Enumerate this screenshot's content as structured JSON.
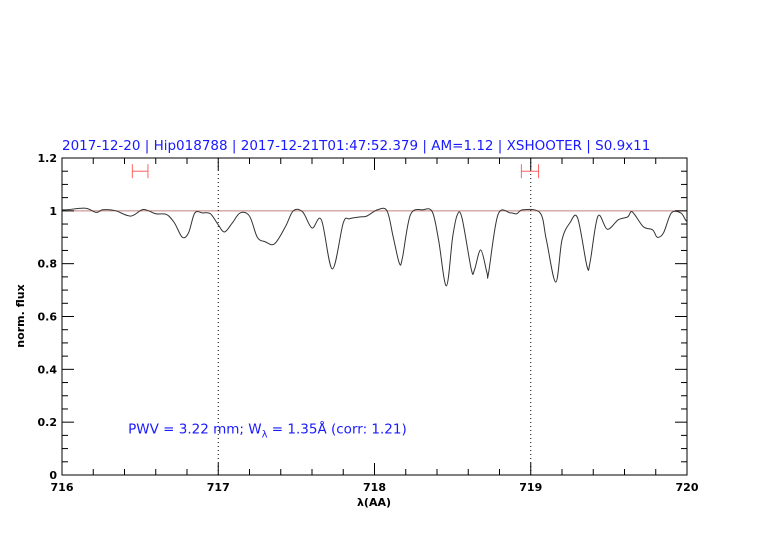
{
  "chart_data": {
    "type": "line",
    "title": "2017-12-20 | Hip018788 | 2017-12-21T01:47:52.379 | AM=1.12 | XSHOOTER | S0.9x11",
    "xlabel": "λ(AA)",
    "ylabel": "norm. flux",
    "xlim": [
      716,
      720
    ],
    "ylim": [
      0,
      1.2
    ],
    "x_ticks": [
      716,
      717,
      718,
      719,
      720
    ],
    "y_ticks": [
      0,
      0.2,
      0.4,
      0.6,
      0.8,
      1,
      1.2
    ],
    "x_minor_step": 0.2,
    "y_minor_step": 0.05,
    "grid": false,
    "reference_line": {
      "y": 1,
      "color": "#c08080"
    },
    "vertical_dotted_lines": [
      717,
      719
    ],
    "continuum_windows": [
      [
        716.45,
        716.55
      ],
      [
        718.94,
        719.05
      ]
    ],
    "continuum_window_y": 1.15,
    "continuum_window_color": "#ff6060",
    "line_color": "#333333",
    "text_color": "#1a1aff",
    "annotation": {
      "prefix": "PWV  =  3.22  mm;  W",
      "subscript": "λ",
      "suffix": "  =  1.35Å  (corr:  1.21)",
      "x": 716.5,
      "y": 0.18
    },
    "series": [
      {
        "x": [
          716.0,
          716.03,
          716.15,
          716.22,
          716.26,
          716.34,
          716.44,
          716.52,
          716.6,
          716.67,
          716.72,
          716.77,
          716.81,
          716.85,
          716.9,
          716.95,
          717.0,
          717.04,
          717.09,
          717.14,
          717.2,
          717.25,
          717.3,
          717.36,
          717.43,
          717.48,
          717.54,
          717.6,
          717.66,
          717.73,
          717.8,
          717.84,
          717.91,
          717.95,
          718.02,
          718.08,
          718.12,
          718.16,
          718.18,
          718.23,
          718.31,
          718.37,
          718.41,
          718.46,
          718.5,
          718.53,
          718.56,
          718.62,
          718.64,
          718.68,
          718.72,
          718.73,
          718.79,
          718.87,
          718.91,
          718.95,
          719.06,
          719.1,
          719.16,
          719.2,
          719.25,
          719.3,
          719.36,
          719.38,
          719.43,
          719.49,
          719.56,
          719.62,
          719.65,
          719.72,
          719.78,
          719.81,
          719.85,
          719.9,
          719.96,
          719.99,
          720.0
        ],
        "y": [
          1.004,
          1.004,
          1.01,
          0.994,
          1.004,
          1.001,
          0.98,
          1.005,
          0.989,
          0.986,
          0.954,
          0.9,
          0.917,
          0.992,
          0.992,
          0.989,
          0.947,
          0.92,
          0.954,
          0.992,
          0.98,
          0.9,
          0.883,
          0.875,
          0.94,
          1.0,
          0.996,
          0.935,
          0.966,
          0.78,
          0.954,
          0.97,
          0.977,
          0.98,
          1.004,
          1.0,
          0.9,
          0.8,
          0.826,
          0.985,
          1.004,
          0.996,
          0.89,
          0.716,
          0.9,
          0.985,
          0.973,
          0.777,
          0.777,
          0.852,
          0.765,
          0.765,
          0.985,
          0.992,
          0.989,
          1.004,
          0.992,
          0.89,
          0.73,
          0.89,
          0.954,
          0.973,
          0.79,
          0.807,
          0.98,
          0.93,
          0.966,
          0.977,
          0.996,
          0.94,
          0.928,
          0.9,
          0.917,
          0.992,
          0.992,
          0.966,
          0.96
        ]
      }
    ]
  }
}
